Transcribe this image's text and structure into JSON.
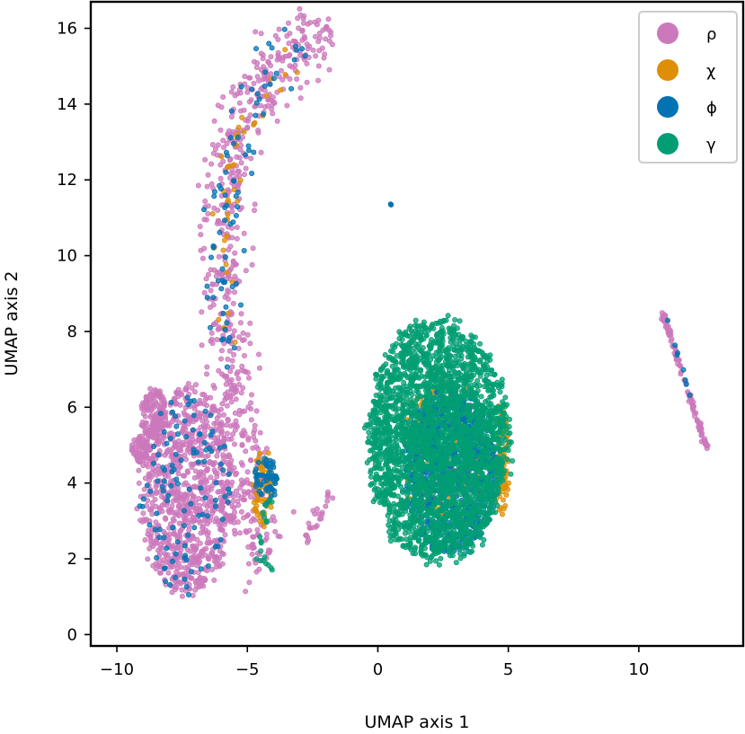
{
  "chart_data": {
    "type": "scatter",
    "title": "",
    "xlabel": "UMAP axis 1",
    "ylabel": "UMAP axis 2",
    "xlim": [
      -11,
      14
    ],
    "ylim": [
      -0.3,
      16.7
    ],
    "xticks": [
      -10,
      -5,
      0,
      5,
      10
    ],
    "yticks": [
      0,
      2,
      4,
      6,
      8,
      10,
      12,
      14,
      16
    ],
    "xtick_labels": [
      "−10",
      "−5",
      "0",
      "5",
      "10"
    ],
    "ytick_labels": [
      "0",
      "2",
      "4",
      "6",
      "8",
      "10",
      "12",
      "14",
      "16"
    ],
    "grid": false,
    "legend_position": "top-right",
    "series": [
      {
        "name": "ρ",
        "color": "#cc78bc",
        "clusters": [
          {
            "shape": "band",
            "path": [
              [
                -4.2,
                2.0
              ],
              [
                -4.8,
                2.6
              ],
              [
                -4.9,
                4.5
              ],
              [
                -5.2,
                5.5
              ],
              [
                -5.6,
                6.8
              ],
              [
                -5.7,
                8.0
              ],
              [
                -5.9,
                9.5
              ],
              [
                -6.0,
                11.5
              ],
              [
                -5.6,
                13.0
              ],
              [
                -4.5,
                14.5
              ],
              [
                -3.0,
                15.6
              ],
              [
                -1.8,
                16.0
              ]
            ],
            "width": 0.9,
            "n": 620
          },
          {
            "shape": "blob",
            "center": [
              -7.3,
              3.8
            ],
            "rx": 2.0,
            "ry": 2.9,
            "n": 900
          },
          {
            "shape": "blob",
            "center": [
              -8.6,
              5.8
            ],
            "rx": 0.5,
            "ry": 0.8,
            "n": 120
          },
          {
            "shape": "blob",
            "center": [
              -9.1,
              4.9
            ],
            "rx": 0.4,
            "ry": 0.4,
            "n": 60
          },
          {
            "shape": "band",
            "path": [
              [
                10.9,
                8.5
              ],
              [
                12.6,
                4.9
              ]
            ],
            "width": 0.08,
            "n": 110
          },
          {
            "shape": "band",
            "path": [
              [
                -2.8,
                2.5
              ],
              [
                -1.8,
                3.7
              ]
            ],
            "width": 0.2,
            "n": 25
          }
        ]
      },
      {
        "name": "χ",
        "color": "#de8f05",
        "clusters": [
          {
            "shape": "blob",
            "center": [
              -4.4,
              3.8
            ],
            "rx": 0.4,
            "ry": 1.2,
            "n": 70
          },
          {
            "shape": "band",
            "path": [
              [
                -5.6,
                7.5
              ],
              [
                -5.8,
                10
              ],
              [
                -5.5,
                13
              ],
              [
                -3.2,
                15.5
              ]
            ],
            "width": 0.6,
            "n": 40
          },
          {
            "shape": "blob",
            "center": [
              4.7,
              4.5
            ],
            "rx": 0.35,
            "ry": 1.6,
            "n": 90
          },
          {
            "shape": "blob",
            "center": [
              2.5,
              4.8
            ],
            "rx": 1.8,
            "ry": 2.2,
            "n": 150
          }
        ]
      },
      {
        "name": "ϕ",
        "color": "#0173b2",
        "clusters": [
          {
            "shape": "blob",
            "center": [
              2.8,
              4.3
            ],
            "rx": 1.9,
            "ry": 2.3,
            "n": 950
          },
          {
            "shape": "blob",
            "center": [
              -4.3,
              4.1
            ],
            "rx": 0.45,
            "ry": 0.7,
            "n": 60
          },
          {
            "shape": "band",
            "path": [
              [
                -5.6,
                7.0
              ],
              [
                -5.9,
                9.5
              ],
              [
                -5.8,
                12
              ],
              [
                -4.5,
                14.5
              ],
              [
                -2.5,
                15.8
              ]
            ],
            "width": 0.8,
            "n": 80
          },
          {
            "shape": "blob",
            "center": [
              -7.3,
              3.6
            ],
            "rx": 2.0,
            "ry": 2.8,
            "n": 110
          },
          {
            "shape": "band",
            "path": [
              [
                11.0,
                8.4
              ],
              [
                12.3,
                5.6
              ]
            ],
            "width": 0.08,
            "n": 8
          },
          {
            "shape": "blob",
            "center": [
              0.5,
              11.35
            ],
            "rx": 0.05,
            "ry": 0.05,
            "n": 3
          }
        ]
      },
      {
        "name": "γ",
        "color": "#029e73",
        "clusters": [
          {
            "shape": "blob",
            "center": [
              2.3,
              5.1
            ],
            "rx": 2.9,
            "ry": 3.4,
            "n": 2600
          },
          {
            "shape": "band",
            "path": [
              [
                -4.2,
                3.6
              ],
              [
                -4.5,
                2.4
              ],
              [
                -4.0,
                1.6
              ]
            ],
            "width": 0.25,
            "n": 20
          }
        ]
      }
    ]
  }
}
